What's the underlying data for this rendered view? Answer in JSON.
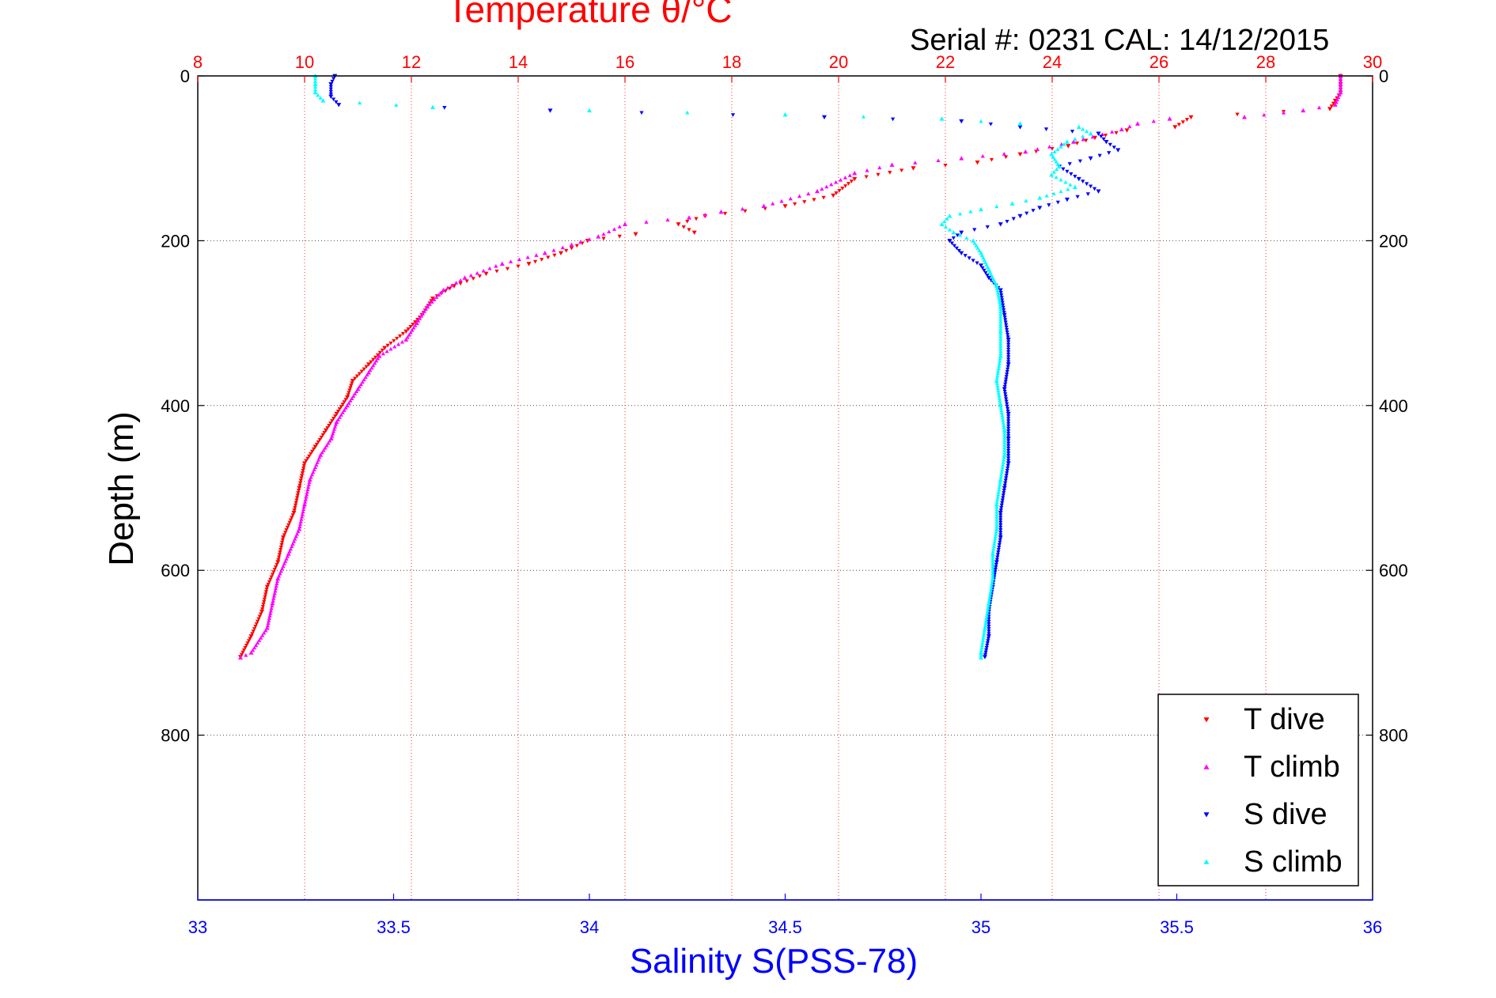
{
  "chart_data": {
    "type": "scatter",
    "title": "Temperature θ/°C",
    "subtitle": "Serial #: 0231  CAL: 14/12/2015",
    "ylabel": "Depth (m)",
    "xlabel": "Salinity S(PSS-78)",
    "ylim": [
      0,
      1000
    ],
    "y_reversed": true,
    "y_ticks": [
      0,
      200,
      400,
      600,
      800
    ],
    "temperature_axis": {
      "position": "top",
      "lim": [
        8,
        30
      ],
      "ticks": [
        8,
        10,
        12,
        14,
        16,
        18,
        20,
        22,
        24,
        26,
        28,
        30
      ],
      "color": "#ff0000"
    },
    "salinity_axis": {
      "position": "bottom",
      "lim": [
        33,
        36
      ],
      "ticks": [
        "33",
        "33.5",
        "34",
        "34.5",
        "35",
        "35.5",
        "36"
      ],
      "color": "#0000ff"
    },
    "grid": true,
    "legend_position": "bottom-right",
    "series": [
      {
        "name": "T dive",
        "axis": "temperature",
        "color": "#ff0000",
        "marker": "triangle-down",
        "points": [
          [
            29.4,
            0
          ],
          [
            29.4,
            10
          ],
          [
            29.4,
            20
          ],
          [
            29.3,
            30
          ],
          [
            29.2,
            40
          ],
          [
            26.6,
            50
          ],
          [
            26.3,
            62
          ],
          [
            25.4,
            66
          ],
          [
            24.8,
            75
          ],
          [
            24.3,
            85
          ],
          [
            23.4,
            95
          ],
          [
            22.6,
            105
          ],
          [
            21.4,
            112
          ],
          [
            20.3,
            125
          ],
          [
            19.9,
            145
          ],
          [
            19.0,
            158
          ],
          [
            17.5,
            170
          ],
          [
            17.0,
            180
          ],
          [
            17.3,
            190
          ],
          [
            16.2,
            192
          ],
          [
            15.3,
            200
          ],
          [
            14.8,
            215
          ],
          [
            14.2,
            228
          ],
          [
            13.4,
            240
          ],
          [
            12.8,
            255
          ],
          [
            12.4,
            270
          ],
          [
            12.2,
            290
          ],
          [
            11.9,
            310
          ],
          [
            11.5,
            330
          ],
          [
            11.2,
            350
          ],
          [
            10.9,
            370
          ],
          [
            10.8,
            390
          ],
          [
            10.6,
            410
          ],
          [
            10.4,
            430
          ],
          [
            10.2,
            450
          ],
          [
            10.0,
            470
          ],
          [
            9.9,
            500
          ],
          [
            9.8,
            530
          ],
          [
            9.6,
            560
          ],
          [
            9.5,
            590
          ],
          [
            9.3,
            620
          ],
          [
            9.2,
            650
          ],
          [
            9.0,
            680
          ],
          [
            8.8,
            705
          ]
        ]
      },
      {
        "name": "T climb",
        "axis": "temperature",
        "color": "#ff00ff",
        "marker": "triangle-up",
        "points": [
          [
            29.4,
            0
          ],
          [
            29.4,
            10
          ],
          [
            29.4,
            20
          ],
          [
            29.3,
            35
          ],
          [
            28.7,
            42
          ],
          [
            27.6,
            50
          ],
          [
            26.2,
            52
          ],
          [
            25.6,
            58
          ],
          [
            25.3,
            65
          ],
          [
            24.4,
            80
          ],
          [
            23.5,
            92
          ],
          [
            22.3,
            100
          ],
          [
            21.0,
            108
          ],
          [
            20.3,
            118
          ],
          [
            19.6,
            140
          ],
          [
            18.6,
            158
          ],
          [
            17.8,
            165
          ],
          [
            17.2,
            172
          ],
          [
            16.0,
            180
          ],
          [
            15.5,
            195
          ],
          [
            15.0,
            205
          ],
          [
            14.5,
            215
          ],
          [
            13.7,
            228
          ],
          [
            13.0,
            245
          ],
          [
            12.6,
            260
          ],
          [
            12.3,
            280
          ],
          [
            12.1,
            300
          ],
          [
            11.9,
            320
          ],
          [
            11.4,
            340
          ],
          [
            11.2,
            360
          ],
          [
            11.0,
            380
          ],
          [
            10.8,
            400
          ],
          [
            10.6,
            420
          ],
          [
            10.5,
            440
          ],
          [
            10.3,
            460
          ],
          [
            10.1,
            490
          ],
          [
            10.0,
            520
          ],
          [
            9.9,
            550
          ],
          [
            9.7,
            580
          ],
          [
            9.5,
            610
          ],
          [
            9.4,
            640
          ],
          [
            9.3,
            670
          ],
          [
            9.0,
            700
          ],
          [
            8.8,
            706
          ]
        ]
      },
      {
        "name": "S dive",
        "axis": "salinity",
        "color": "#0000ff",
        "marker": "triangle-down",
        "points": [
          [
            33.35,
            0
          ],
          [
            33.34,
            10
          ],
          [
            33.34,
            25
          ],
          [
            33.36,
            35
          ],
          [
            33.9,
            42
          ],
          [
            34.6,
            50
          ],
          [
            34.95,
            55
          ],
          [
            35.1,
            62
          ],
          [
            35.3,
            70
          ],
          [
            35.32,
            80
          ],
          [
            35.35,
            90
          ],
          [
            35.28,
            100
          ],
          [
            35.2,
            110
          ],
          [
            35.25,
            125
          ],
          [
            35.3,
            140
          ],
          [
            35.22,
            150
          ],
          [
            35.15,
            160
          ],
          [
            35.1,
            170
          ],
          [
            35.05,
            180
          ],
          [
            34.95,
            190
          ],
          [
            34.92,
            200
          ],
          [
            34.95,
            215
          ],
          [
            35.0,
            230
          ],
          [
            35.02,
            245
          ],
          [
            35.05,
            260
          ],
          [
            35.06,
            290
          ],
          [
            35.07,
            320
          ],
          [
            35.07,
            350
          ],
          [
            35.06,
            380
          ],
          [
            35.07,
            410
          ],
          [
            35.07,
            440
          ],
          [
            35.07,
            470
          ],
          [
            35.06,
            500
          ],
          [
            35.05,
            530
          ],
          [
            35.05,
            560
          ],
          [
            35.04,
            590
          ],
          [
            35.03,
            620
          ],
          [
            35.02,
            650
          ],
          [
            35.02,
            680
          ],
          [
            35.01,
            705
          ]
        ]
      },
      {
        "name": "S climb",
        "axis": "salinity",
        "color": "#00ffff",
        "marker": "triangle-up",
        "points": [
          [
            33.3,
            0
          ],
          [
            33.3,
            10
          ],
          [
            33.3,
            20
          ],
          [
            33.32,
            30
          ],
          [
            33.6,
            38
          ],
          [
            34.0,
            42
          ],
          [
            34.5,
            47
          ],
          [
            34.9,
            52
          ],
          [
            35.1,
            58
          ],
          [
            35.25,
            62
          ],
          [
            35.28,
            70
          ],
          [
            35.22,
            80
          ],
          [
            35.18,
            95
          ],
          [
            35.2,
            110
          ],
          [
            35.18,
            120
          ],
          [
            35.24,
            135
          ],
          [
            35.15,
            148
          ],
          [
            35.08,
            155
          ],
          [
            35.0,
            162
          ],
          [
            34.92,
            170
          ],
          [
            34.9,
            180
          ],
          [
            34.93,
            190
          ],
          [
            34.98,
            200
          ],
          [
            35.0,
            215
          ],
          [
            35.02,
            235
          ],
          [
            35.04,
            255
          ],
          [
            35.05,
            280
          ],
          [
            35.05,
            310
          ],
          [
            35.05,
            340
          ],
          [
            35.04,
            370
          ],
          [
            35.05,
            400
          ],
          [
            35.06,
            430
          ],
          [
            35.06,
            460
          ],
          [
            35.05,
            490
          ],
          [
            35.04,
            520
          ],
          [
            35.04,
            550
          ],
          [
            35.03,
            580
          ],
          [
            35.03,
            610
          ],
          [
            35.02,
            640
          ],
          [
            35.01,
            670
          ],
          [
            35.0,
            700
          ],
          [
            35.0,
            706
          ]
        ]
      }
    ]
  }
}
